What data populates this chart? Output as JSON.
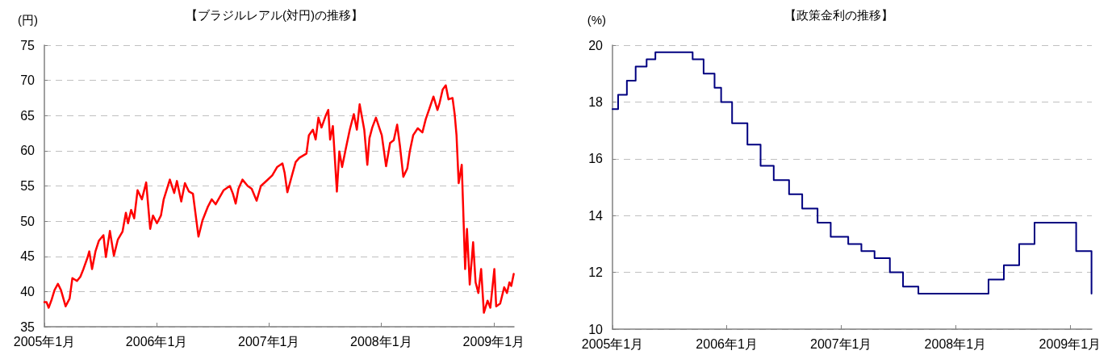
{
  "chart_data": [
    {
      "type": "line",
      "title": "【ブラジルレアル(対円)の推移】",
      "ylabel": "(円)",
      "grid": "y",
      "marker": "none",
      "x": [
        "2005-01-01",
        "2005-01-08",
        "2005-01-15",
        "2005-01-25",
        "2005-02-03",
        "2005-02-14",
        "2005-02-24",
        "2005-03-11",
        "2005-03-24",
        "2005-04-02",
        "2005-04-17",
        "2005-04-28",
        "2005-05-08",
        "2005-05-21",
        "2005-05-27",
        "2005-06-05",
        "2005-06-16",
        "2005-06-27",
        "2005-07-12",
        "2005-07-20",
        "2005-08-02",
        "2005-08-15",
        "2005-08-28",
        "2005-09-12",
        "2005-09-23",
        "2005-09-30",
        "2005-10-10",
        "2005-10-20",
        "2005-10-31",
        "2005-11-14",
        "2005-11-28",
        "2005-12-11",
        "2005-12-20",
        "2006-01-02",
        "2006-01-15",
        "2006-01-24",
        "2006-02-13",
        "2006-02-27",
        "2006-03-08",
        "2006-03-22",
        "2006-04-03",
        "2006-04-16",
        "2006-04-29",
        "2006-05-17",
        "2006-05-30",
        "2006-06-16",
        "2006-06-29",
        "2006-07-12",
        "2006-08-07",
        "2006-08-27",
        "2006-09-06",
        "2006-09-15",
        "2006-09-24",
        "2006-10-07",
        "2006-10-24",
        "2006-11-06",
        "2006-11-22",
        "2006-12-06",
        "2006-12-26",
        "2007-01-12",
        "2007-01-28",
        "2007-02-14",
        "2007-02-21",
        "2007-03-02",
        "2007-03-17",
        "2007-03-29",
        "2007-04-10",
        "2007-05-03",
        "2007-05-11",
        "2007-05-24",
        "2007-06-02",
        "2007-06-11",
        "2007-06-21",
        "2007-07-04",
        "2007-07-13",
        "2007-07-19",
        "2007-07-28",
        "2007-08-10",
        "2007-08-18",
        "2007-08-27",
        "2007-09-08",
        "2007-09-21",
        "2007-10-04",
        "2007-10-14",
        "2007-10-23",
        "2007-11-07",
        "2007-11-17",
        "2007-11-24",
        "2007-12-03",
        "2007-12-15",
        "2008-01-03",
        "2008-01-17",
        "2008-01-30",
        "2008-02-11",
        "2008-02-22",
        "2008-03-02",
        "2008-03-13",
        "2008-03-26",
        "2008-04-03",
        "2008-04-14",
        "2008-04-29",
        "2008-05-14",
        "2008-05-25",
        "2008-06-06",
        "2008-06-19",
        "2008-07-02",
        "2008-07-09",
        "2008-07-19",
        "2008-07-29",
        "2008-08-07",
        "2008-08-20",
        "2008-08-27",
        "2008-09-02",
        "2008-09-09",
        "2008-09-19",
        "2008-09-23",
        "2008-09-30",
        "2008-10-06",
        "2008-10-15",
        "2008-10-26",
        "2008-11-03",
        "2008-11-12",
        "2008-11-21",
        "2008-11-30",
        "2008-12-12",
        "2008-12-21",
        "2009-01-03",
        "2009-01-09",
        "2009-01-22",
        "2009-02-04",
        "2009-02-13",
        "2009-02-21",
        "2009-02-27",
        "2009-03-07"
      ],
      "series": [
        {
          "color": "#ff0000",
          "values": [
            38.5,
            38.5,
            37.7,
            38.9,
            40.2,
            41.1,
            40.2,
            37.9,
            39.0,
            41.9,
            41.5,
            42.1,
            43.2,
            44.8,
            45.7,
            43.2,
            45.7,
            47.2,
            48.0,
            44.9,
            48.6,
            45.1,
            47.4,
            48.5,
            51.2,
            49.7,
            51.6,
            50.4,
            54.4,
            53.1,
            55.5,
            48.9,
            50.8,
            49.7,
            50.8,
            53.1,
            55.9,
            54.0,
            55.7,
            52.8,
            55.4,
            54.2,
            53.9,
            47.8,
            50.1,
            52.0,
            53.1,
            52.4,
            54.4,
            55.0,
            53.9,
            52.5,
            54.6,
            55.9,
            55.0,
            54.6,
            52.9,
            55.0,
            55.8,
            56.5,
            57.7,
            58.2,
            56.9,
            54.1,
            56.5,
            58.4,
            59.0,
            59.6,
            62.2,
            63.0,
            61.6,
            64.7,
            63.3,
            64.9,
            65.8,
            61.6,
            63.5,
            54.2,
            59.9,
            57.7,
            60.3,
            63.0,
            65.2,
            63.0,
            66.6,
            63.0,
            58.0,
            61.8,
            63.3,
            64.7,
            62.2,
            57.8,
            61.1,
            61.5,
            63.7,
            60.7,
            56.3,
            57.5,
            59.9,
            62.2,
            63.2,
            62.6,
            64.5,
            66.0,
            67.7,
            65.8,
            66.8,
            68.7,
            69.3,
            67.3,
            67.5,
            65.2,
            62.2,
            55.4,
            58.0,
            52.7,
            43.2,
            48.9,
            41.0,
            47.0,
            41.3,
            39.8,
            43.2,
            37.0,
            38.7,
            37.7,
            43.2,
            37.9,
            38.3,
            40.6,
            39.8,
            41.3,
            40.8,
            42.5
          ]
        }
      ],
      "xlim": [
        "2005-01-01",
        "2009-03-08"
      ],
      "xticks": [
        {
          "value": "2005-01-01",
          "label": "2005年1月"
        },
        {
          "value": "2006-01-01",
          "label": "2006年1月"
        },
        {
          "value": "2007-01-01",
          "label": "2007年1月"
        },
        {
          "value": "2008-01-01",
          "label": "2008年1月"
        },
        {
          "value": "2009-01-01",
          "label": "2009年1月"
        }
      ],
      "ylim": [
        35,
        75
      ],
      "yticks": [
        35,
        40,
        45,
        50,
        55,
        60,
        65,
        70,
        75
      ]
    },
    {
      "type": "step",
      "title": "【政策金利の推移】",
      "ylabel": "(%)",
      "grid": "y",
      "marker": "none",
      "x": [
        "2005-01-01",
        "2005-01-19",
        "2005-02-16",
        "2005-03-16",
        "2005-04-20",
        "2005-05-18",
        "2005-09-14",
        "2005-10-19",
        "2005-11-23",
        "2005-12-14",
        "2006-01-18",
        "2006-03-08",
        "2006-04-19",
        "2006-05-31",
        "2006-07-19",
        "2006-08-30",
        "2006-10-18",
        "2006-11-29",
        "2007-01-24",
        "2007-03-07",
        "2007-04-18",
        "2007-06-06",
        "2007-07-18",
        "2007-09-05",
        "2008-04-16",
        "2008-06-04",
        "2008-07-23",
        "2008-09-10",
        "2009-01-21",
        "2009-03-11"
      ],
      "series": [
        {
          "color": "#000080",
          "values": [
            17.75,
            18.25,
            18.75,
            19.25,
            19.5,
            19.75,
            19.5,
            19.0,
            18.5,
            18.0,
            17.25,
            16.5,
            15.75,
            15.25,
            14.75,
            14.25,
            13.75,
            13.25,
            13.0,
            12.75,
            12.5,
            12.0,
            11.5,
            11.25,
            11.75,
            12.25,
            13.0,
            13.75,
            12.75,
            11.25
          ]
        }
      ],
      "xlim": [
        "2005-01-01",
        "2009-03-12"
      ],
      "xticks": [
        {
          "value": "2005-01-01",
          "label": "2005年1月"
        },
        {
          "value": "2006-01-01",
          "label": "2006年1月"
        },
        {
          "value": "2007-01-01",
          "label": "2007年1月"
        },
        {
          "value": "2008-01-01",
          "label": "2008年1月"
        },
        {
          "value": "2009-01-01",
          "label": "2009年1月"
        }
      ],
      "ylim": [
        10,
        20
      ],
      "yticks": [
        10,
        12,
        14,
        16,
        18,
        20
      ]
    }
  ]
}
